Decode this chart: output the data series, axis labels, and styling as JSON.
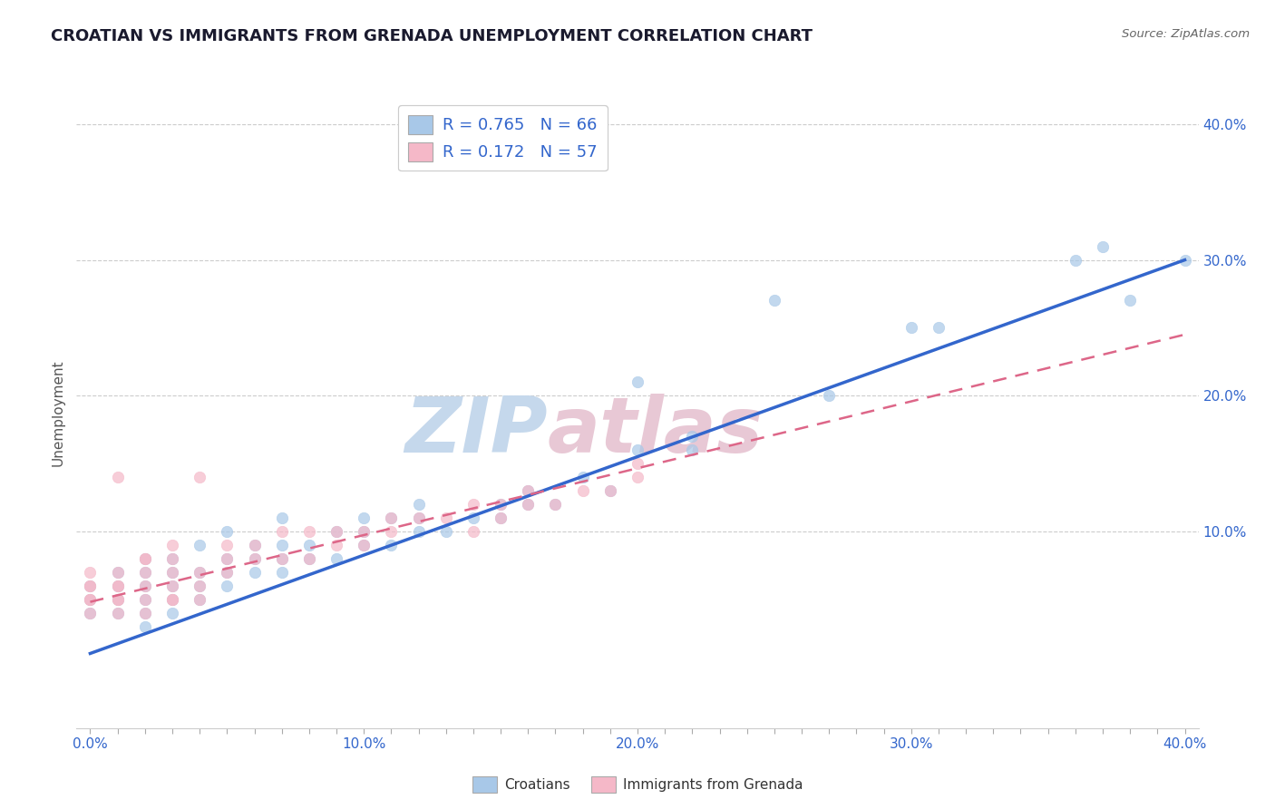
{
  "title": "CROATIAN VS IMMIGRANTS FROM GRENADA UNEMPLOYMENT CORRELATION CHART",
  "source": "Source: ZipAtlas.com",
  "ylabel": "Unemployment",
  "xlabel": "",
  "xlim": [
    -0.005,
    0.405
  ],
  "ylim": [
    -0.045,
    0.42
  ],
  "xtick_labels": [
    "0.0%",
    "",
    "",
    "",
    "",
    "",
    "",
    "",
    "",
    "",
    "10.0%",
    "",
    "",
    "",
    "",
    "",
    "",
    "",
    "",
    "",
    "20.0%",
    "",
    "",
    "",
    "",
    "",
    "",
    "",
    "",
    "",
    "30.0%",
    "",
    "",
    "",
    "",
    "",
    "",
    "",
    "",
    "",
    "40.0%"
  ],
  "xtick_vals": [
    0.0,
    0.01,
    0.02,
    0.03,
    0.04,
    0.05,
    0.06,
    0.07,
    0.08,
    0.09,
    0.1,
    0.11,
    0.12,
    0.13,
    0.14,
    0.15,
    0.16,
    0.17,
    0.18,
    0.19,
    0.2,
    0.21,
    0.22,
    0.23,
    0.24,
    0.25,
    0.26,
    0.27,
    0.28,
    0.29,
    0.3,
    0.31,
    0.32,
    0.33,
    0.34,
    0.35,
    0.36,
    0.37,
    0.38,
    0.39,
    0.4
  ],
  "ytick_vals": [
    0.1,
    0.2,
    0.3,
    0.4
  ],
  "ytick_labels": [
    "10.0%",
    "20.0%",
    "30.0%",
    "40.0%"
  ],
  "blue_color": "#a8c8e8",
  "pink_color": "#f5b8c8",
  "blue_line_color": "#3366cc",
  "pink_line_color": "#dd6688",
  "watermark_blue": "#c5d8ec",
  "watermark_pink": "#e8c8d5",
  "legend_blue_label": "R = 0.765   N = 66",
  "legend_pink_label": "R = 0.172   N = 57",
  "legend_croatians": "Croatians",
  "legend_grenada": "Immigrants from Grenada",
  "blue_trend_x0": 0.0,
  "blue_trend_y0": 0.01,
  "blue_trend_x1": 0.4,
  "blue_trend_y1": 0.3,
  "pink_trend_x0": 0.0,
  "pink_trend_y0": 0.048,
  "pink_trend_x1": 0.4,
  "pink_trend_y1": 0.245,
  "background_color": "#ffffff",
  "title_color": "#1a1a2e",
  "title_fontsize": 13,
  "axis_label_color": "#555555",
  "tick_color": "#3366cc",
  "grid_color": "#cccccc",
  "blue_scatter_x": [
    0.0,
    0.0,
    0.0,
    0.01,
    0.01,
    0.01,
    0.01,
    0.02,
    0.02,
    0.02,
    0.02,
    0.02,
    0.03,
    0.03,
    0.03,
    0.03,
    0.04,
    0.04,
    0.04,
    0.04,
    0.05,
    0.05,
    0.05,
    0.05,
    0.06,
    0.06,
    0.06,
    0.07,
    0.07,
    0.07,
    0.07,
    0.08,
    0.08,
    0.09,
    0.09,
    0.1,
    0.1,
    0.1,
    0.11,
    0.11,
    0.12,
    0.12,
    0.12,
    0.13,
    0.14,
    0.15,
    0.15,
    0.16,
    0.16,
    0.17,
    0.18,
    0.19,
    0.2,
    0.22,
    0.22,
    0.27,
    0.31,
    0.36,
    0.37,
    0.4,
    0.2,
    0.25,
    0.3,
    0.38,
    0.02,
    0.03
  ],
  "blue_scatter_y": [
    0.04,
    0.05,
    0.06,
    0.04,
    0.05,
    0.06,
    0.07,
    0.04,
    0.05,
    0.06,
    0.07,
    0.08,
    0.05,
    0.06,
    0.07,
    0.08,
    0.05,
    0.06,
    0.07,
    0.09,
    0.06,
    0.07,
    0.08,
    0.1,
    0.07,
    0.08,
    0.09,
    0.07,
    0.08,
    0.09,
    0.11,
    0.08,
    0.09,
    0.08,
    0.1,
    0.09,
    0.1,
    0.11,
    0.09,
    0.11,
    0.1,
    0.11,
    0.12,
    0.1,
    0.11,
    0.11,
    0.12,
    0.12,
    0.13,
    0.12,
    0.14,
    0.13,
    0.16,
    0.16,
    0.17,
    0.2,
    0.25,
    0.3,
    0.31,
    0.3,
    0.21,
    0.27,
    0.25,
    0.27,
    0.03,
    0.04
  ],
  "pink_scatter_x": [
    0.0,
    0.0,
    0.0,
    0.0,
    0.0,
    0.0,
    0.01,
    0.01,
    0.01,
    0.01,
    0.01,
    0.01,
    0.01,
    0.02,
    0.02,
    0.02,
    0.02,
    0.02,
    0.02,
    0.03,
    0.03,
    0.03,
    0.03,
    0.03,
    0.03,
    0.04,
    0.04,
    0.04,
    0.04,
    0.05,
    0.05,
    0.05,
    0.06,
    0.06,
    0.07,
    0.07,
    0.08,
    0.08,
    0.09,
    0.09,
    0.1,
    0.1,
    0.11,
    0.11,
    0.12,
    0.13,
    0.14,
    0.14,
    0.15,
    0.15,
    0.16,
    0.16,
    0.17,
    0.18,
    0.19,
    0.2,
    0.2
  ],
  "pink_scatter_y": [
    0.04,
    0.05,
    0.05,
    0.06,
    0.06,
    0.07,
    0.04,
    0.05,
    0.05,
    0.06,
    0.06,
    0.07,
    0.14,
    0.04,
    0.05,
    0.06,
    0.07,
    0.08,
    0.08,
    0.05,
    0.05,
    0.06,
    0.07,
    0.08,
    0.09,
    0.05,
    0.06,
    0.07,
    0.14,
    0.07,
    0.08,
    0.09,
    0.08,
    0.09,
    0.08,
    0.1,
    0.08,
    0.1,
    0.09,
    0.1,
    0.09,
    0.1,
    0.1,
    0.11,
    0.11,
    0.11,
    0.1,
    0.12,
    0.11,
    0.12,
    0.12,
    0.13,
    0.12,
    0.13,
    0.13,
    0.14,
    0.15
  ]
}
